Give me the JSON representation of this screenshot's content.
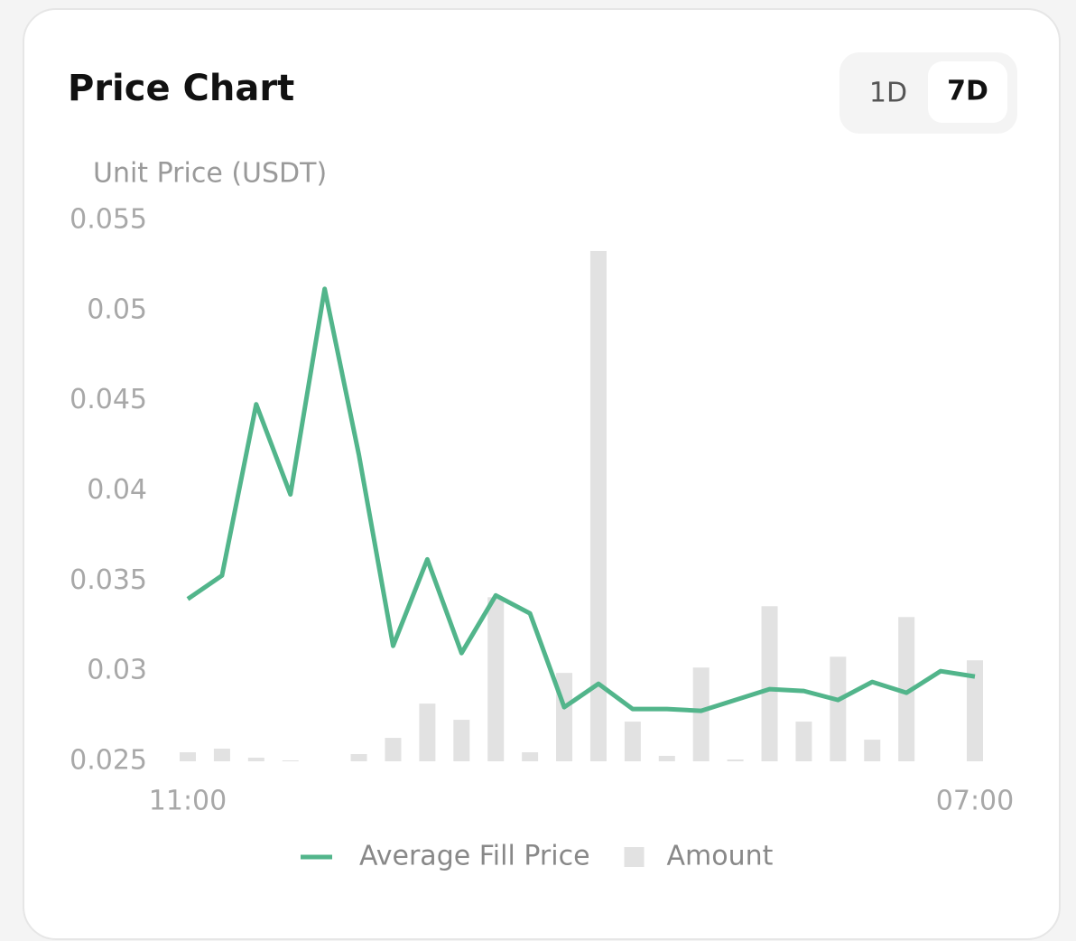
{
  "tabs": [
    "1D",
    "7D"
  ],
  "active_tab": "7D",
  "chart_data": {
    "type": "line",
    "title": "Price Chart",
    "y_label": "Unit Price (USDT)",
    "categories": [
      "11:00",
      null,
      null,
      null,
      null,
      null,
      null,
      null,
      null,
      null,
      null,
      null,
      null,
      null,
      null,
      null,
      null,
      null,
      null,
      null,
      null,
      null,
      null,
      "07:00"
    ],
    "series": [
      {
        "name": "Average Fill Price",
        "type": "line",
        "color": "#52b58b",
        "values": [
          0.034,
          0.0353,
          0.0448,
          0.0398,
          0.0512,
          0.042,
          0.0314,
          0.0362,
          0.031,
          0.0342,
          0.0332,
          0.028,
          0.0293,
          0.0279,
          0.0279,
          0.0278,
          0.0284,
          0.029,
          0.0289,
          0.0284,
          0.0294,
          0.0288,
          0.03,
          0.0297
        ]
      },
      {
        "name": "Amount",
        "type": "bar",
        "color": "#e2e2e2",
        "values": [
          0.0255,
          0.0257,
          0.0252,
          0.02505,
          0.025,
          0.0254,
          0.0263,
          0.0282,
          0.0273,
          0.0341,
          0.0255,
          0.0299,
          0.0533,
          0.0272,
          0.0253,
          0.0302,
          0.0251,
          0.0336,
          0.0272,
          0.0308,
          0.0262,
          0.033,
          0.025,
          0.0306
        ]
      }
    ],
    "ylim": [
      0.025,
      0.055
    ],
    "yticks": [
      0.025,
      0.03,
      0.035,
      0.04,
      0.045,
      0.05,
      0.055
    ],
    "grid": false,
    "legend": "bottom"
  }
}
